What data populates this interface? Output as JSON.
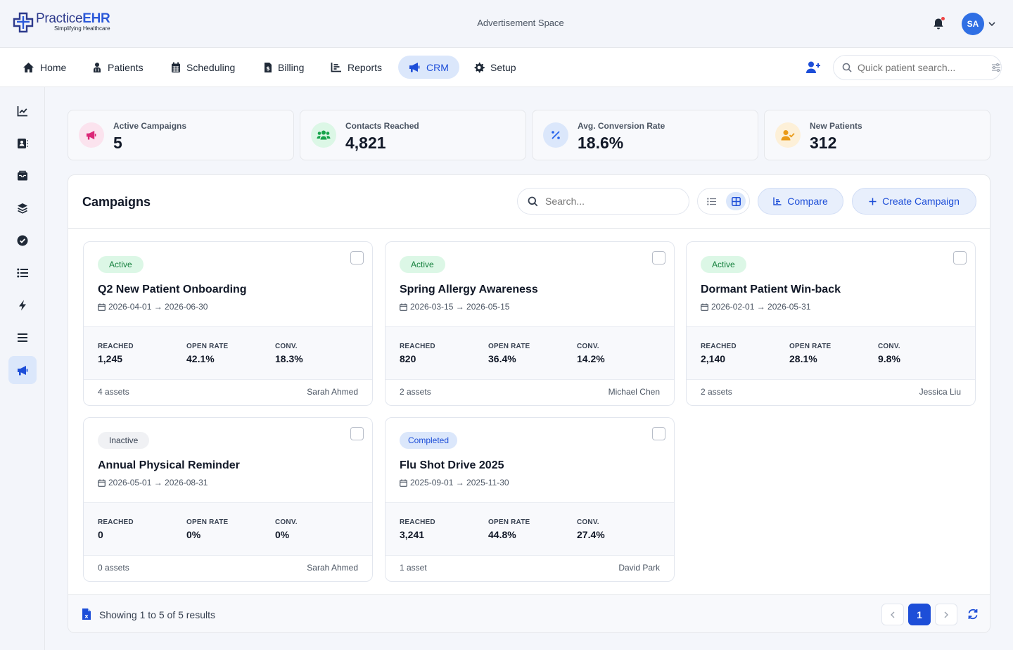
{
  "brand": {
    "name_prefix": "Practice",
    "name_suffix": "EHR",
    "tagline": "Simplifying Healthcare"
  },
  "header": {
    "ad_text": "Advertisement Space",
    "user_initials": "SA"
  },
  "nav": {
    "items": [
      {
        "label": "Home",
        "icon": "home-icon"
      },
      {
        "label": "Patients",
        "icon": "patients-icon"
      },
      {
        "label": "Scheduling",
        "icon": "calendar-icon"
      },
      {
        "label": "Billing",
        "icon": "billing-icon"
      },
      {
        "label": "Reports",
        "icon": "reports-icon"
      },
      {
        "label": "CRM",
        "icon": "megaphone-icon",
        "active": true
      },
      {
        "label": "Setup",
        "icon": "gear-icon"
      }
    ],
    "quick_search_placeholder": "Quick patient search..."
  },
  "sidebar": {
    "items": [
      "chart-line-icon",
      "contacts-icon",
      "inbox-icon",
      "layers-icon",
      "check-circle-icon",
      "list-icon",
      "bolt-icon",
      "menu-icon",
      "megaphone-icon"
    ],
    "active_index": 8
  },
  "stats": [
    {
      "label": "Active Campaigns",
      "value": "5",
      "icon": "megaphone-icon",
      "color": "#db2777",
      "bg": "#fbe3ee"
    },
    {
      "label": "Contacts Reached",
      "value": "4,821",
      "icon": "users-icon",
      "color": "#16a34a",
      "bg": "#dcf7e6"
    },
    {
      "label": "Avg. Conversion Rate",
      "value": "18.6%",
      "icon": "percent-icon",
      "color": "#2563eb",
      "bg": "#dbe7fb"
    },
    {
      "label": "New Patients",
      "value": "312",
      "icon": "user-check-icon",
      "color": "#ea9a17",
      "bg": "#fdf0d8"
    }
  ],
  "campaigns_panel": {
    "title": "Campaigns",
    "search_placeholder": "Search...",
    "compare_label": "Compare",
    "create_label": "Create Campaign",
    "metric_labels": {
      "reached": "REACHED",
      "open_rate": "OPEN RATE",
      "conv": "CONV."
    },
    "cards": [
      {
        "status": "Active",
        "status_type": "active",
        "title": "Q2 New Patient Onboarding",
        "dates": "2026-04-01 → 2026-06-30",
        "reached": "1,245",
        "open_rate": "42.1%",
        "conv": "18.3%",
        "assets": "4 assets",
        "owner": "Sarah Ahmed"
      },
      {
        "status": "Active",
        "status_type": "active",
        "title": "Spring Allergy Awareness",
        "dates": "2026-03-15 → 2026-05-15",
        "reached": "820",
        "open_rate": "36.4%",
        "conv": "14.2%",
        "assets": "2 assets",
        "owner": "Michael Chen"
      },
      {
        "status": "Active",
        "status_type": "active",
        "title": "Dormant Patient Win-back",
        "dates": "2026-02-01 → 2026-05-31",
        "reached": "2,140",
        "open_rate": "28.1%",
        "conv": "9.8%",
        "assets": "2 assets",
        "owner": "Jessica Liu"
      },
      {
        "status": "Inactive",
        "status_type": "inactive",
        "title": "Annual Physical Reminder",
        "dates": "2026-05-01 → 2026-08-31",
        "reached": "0",
        "open_rate": "0%",
        "conv": "0%",
        "assets": "0 assets",
        "owner": "Sarah Ahmed"
      },
      {
        "status": "Completed",
        "status_type": "completed",
        "title": "Flu Shot Drive 2025",
        "dates": "2025-09-01 → 2025-11-30",
        "reached": "3,241",
        "open_rate": "44.8%",
        "conv": "27.4%",
        "assets": "1 asset",
        "owner": "David Park"
      }
    ],
    "footer_text": "Showing 1 to 5 of 5 results",
    "current_page": "1"
  },
  "colors": {
    "accent": "#1d4ed8",
    "accent_soft": "#dbe7fb"
  }
}
